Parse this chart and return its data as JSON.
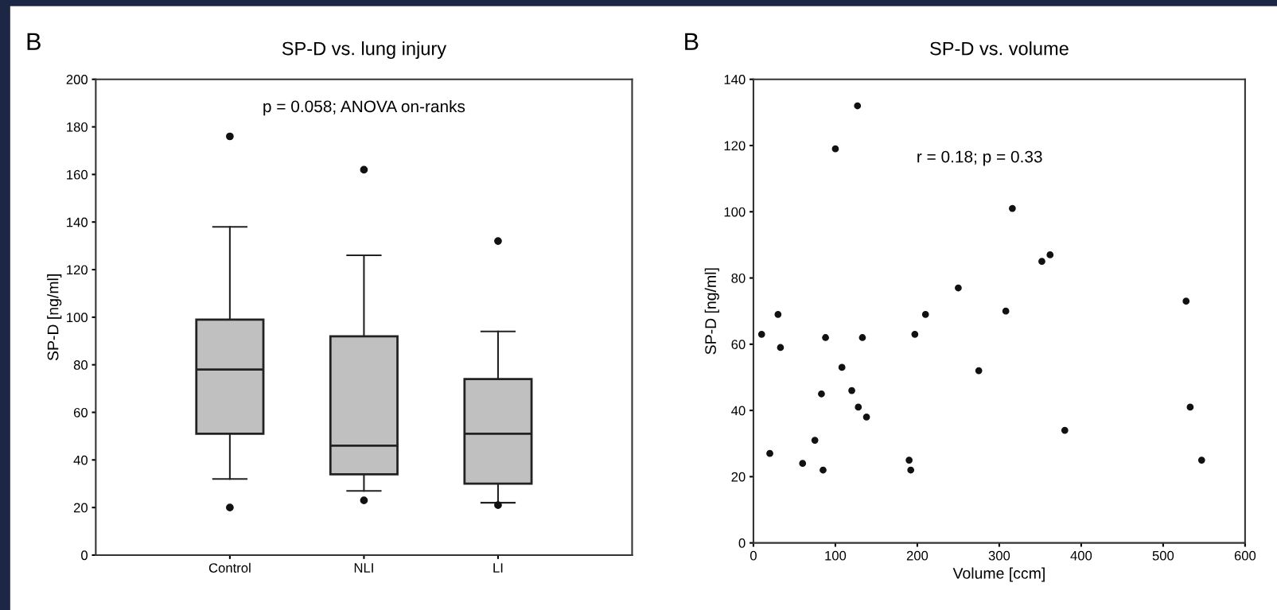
{
  "chart_data": [
    {
      "type": "box",
      "title": "SP-D vs. lung injury",
      "ylabel": "SP-D [ng/ml]",
      "categories": [
        "Control",
        "NLI",
        "LI"
      ],
      "boxes": [
        {
          "low": 32,
          "q1": 51,
          "median": 78,
          "q3": 99,
          "high": 138,
          "outliers": [
            176,
            20
          ]
        },
        {
          "low": 27,
          "q1": 34,
          "median": 46,
          "q3": 92,
          "high": 126,
          "outliers": [
            162,
            23
          ]
        },
        {
          "low": 22,
          "q1": 30,
          "median": 51,
          "q3": 74,
          "high": 94,
          "outliers": [
            132,
            21
          ]
        }
      ],
      "color": "#c0c0c0",
      "ylim": [
        0,
        200
      ],
      "yticks": [
        0,
        20,
        40,
        60,
        80,
        100,
        120,
        140,
        160,
        180,
        200
      ],
      "grid": false,
      "legend": false,
      "annotations": [
        "B",
        "p = 0.058; ANOVA on-ranks"
      ]
    },
    {
      "type": "scatter",
      "title": "SP-D vs. volume",
      "xlabel": "Volume [ccm]",
      "ylabel": "SP-D [ng/ml]",
      "x": [
        10,
        20,
        30,
        33,
        60,
        75,
        83,
        85,
        88,
        100,
        108,
        120,
        127,
        128,
        133,
        138,
        190,
        192,
        197,
        210,
        250,
        275,
        308,
        316,
        352,
        362,
        380,
        528,
        533,
        547
      ],
      "values": [
        63,
        27,
        69,
        59,
        24,
        31,
        45,
        22,
        62,
        119,
        53,
        46,
        132,
        41,
        62,
        38,
        25,
        22,
        63,
        69,
        77,
        52,
        70,
        101,
        85,
        87,
        34,
        73,
        41,
        25
      ],
      "color": "#111111",
      "marker": "circle",
      "xlim": [
        0,
        600
      ],
      "xticks": [
        0,
        100,
        200,
        300,
        400,
        500,
        600
      ],
      "ylim": [
        0,
        140
      ],
      "yticks": [
        0,
        20,
        40,
        60,
        80,
        100,
        120,
        140
      ],
      "grid": false,
      "legend": false,
      "annotations": [
        "B",
        "r = 0.18; p = 0.33"
      ]
    }
  ]
}
